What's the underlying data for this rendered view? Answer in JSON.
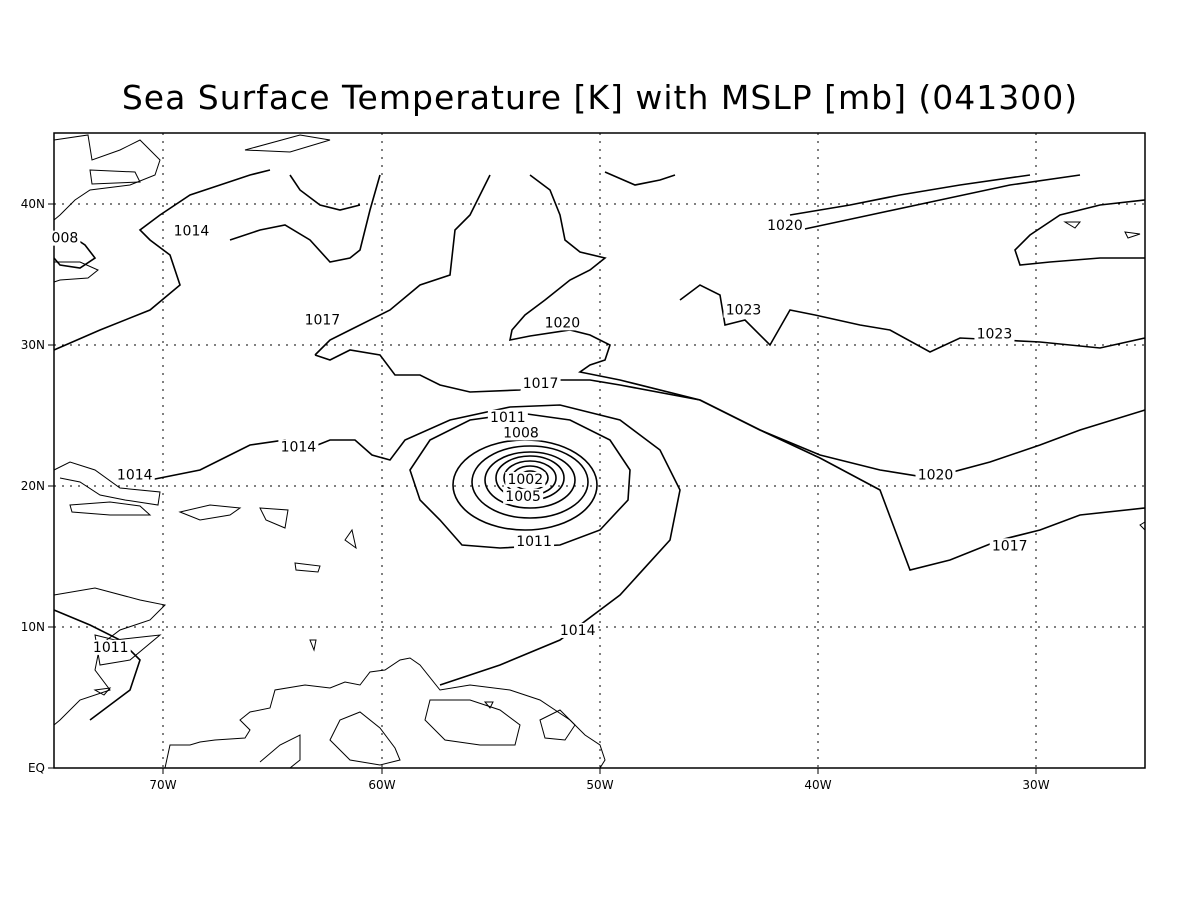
{
  "title": "Sea Surface Temperature [K] with MSLP [mb] (041300)",
  "lon_ticks": [
    "70W",
    "60W",
    "50W",
    "40W",
    "30W"
  ],
  "lat_ticks": [
    "40N",
    "30N",
    "20N",
    "10N",
    "EQ"
  ],
  "extent": {
    "lon_min": -75,
    "lon_max": -25,
    "lat_min": 0,
    "lat_max": 45
  },
  "grid": "dotted",
  "contour_labels": [
    {
      "text": "1014",
      "lon": -68.7,
      "lat": 37.8
    },
    {
      "text": "1017",
      "lon": -62.7,
      "lat": 31.5
    },
    {
      "text": "1020",
      "lon": -51.7,
      "lat": 31.3
    },
    {
      "text": "1017",
      "lon": -52.7,
      "lat": 27.0
    },
    {
      "text": "1014",
      "lon": -63.8,
      "lat": 22.5
    },
    {
      "text": "1014",
      "lon": -71.3,
      "lat": 20.5
    },
    {
      "text": "1011",
      "lon": -54.2,
      "lat": 24.6
    },
    {
      "text": "1008",
      "lon": -53.6,
      "lat": 23.5
    },
    {
      "text": "1005",
      "lon": -53.5,
      "lat": 19.0
    },
    {
      "text": "1002",
      "lon": -53.4,
      "lat": 20.2
    },
    {
      "text": "1011",
      "lon": -53.0,
      "lat": 15.8
    },
    {
      "text": "1014",
      "lon": -51.0,
      "lat": 9.5
    },
    {
      "text": "1011",
      "lon": -72.4,
      "lat": 8.3
    },
    {
      "text": "1020",
      "lon": -41.5,
      "lat": 38.2
    },
    {
      "text": "1023",
      "lon": -43.4,
      "lat": 32.2
    },
    {
      "text": "1023",
      "lon": -31.9,
      "lat": 30.5
    },
    {
      "text": "1020",
      "lon": -34.6,
      "lat": 20.5
    },
    {
      "text": "1017",
      "lon": -31.2,
      "lat": 15.5
    },
    {
      "text": "008",
      "lon": -74.5,
      "lat": 37.3
    }
  ],
  "contour_levels_mb": [
    1002,
    1005,
    1008,
    1011,
    1014,
    1017,
    1020,
    1023
  ],
  "low_center": {
    "lon": -53.3,
    "lat": 20.5
  }
}
